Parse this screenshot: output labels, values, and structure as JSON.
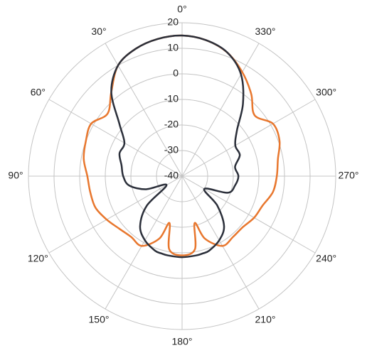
{
  "chart_data": {
    "type": "polar",
    "theta_zero": "top",
    "theta_direction": "counterclockwise",
    "grid": true,
    "rlim": [
      -40,
      20
    ],
    "rticks": [
      -40,
      -30,
      -20,
      -10,
      0,
      10,
      20
    ],
    "thetaticks": [
      {
        "value": 0,
        "label": "0°"
      },
      {
        "value": 30,
        "label": "30°"
      },
      {
        "value": 60,
        "label": "60°"
      },
      {
        "value": 90,
        "label": "90°"
      },
      {
        "value": 120,
        "label": "120°"
      },
      {
        "value": 150,
        "label": "150°"
      },
      {
        "value": 180,
        "label": "180°"
      },
      {
        "value": 210,
        "label": "210°"
      },
      {
        "value": 240,
        "label": "240°"
      },
      {
        "value": 270,
        "label": "270°"
      },
      {
        "value": 300,
        "label": "300°"
      },
      {
        "value": 330,
        "label": "330°"
      }
    ],
    "x": [
      0,
      10,
      20,
      30,
      40,
      50,
      60,
      70,
      80,
      90,
      100,
      110,
      120,
      130,
      140,
      150,
      160,
      165,
      170,
      180,
      190,
      195,
      200,
      210,
      220,
      230,
      240,
      250,
      260,
      270,
      280,
      290,
      300,
      310,
      320,
      330,
      340,
      350
    ],
    "series": [
      {
        "color": "#e8772e",
        "values": [
          15,
          14.5,
          13,
          10,
          3,
          -2,
          1,
          0,
          -1,
          -3,
          -3.6,
          -4,
          -6,
          -8,
          -9,
          -8.5,
          -14,
          -21,
          -11,
          -9,
          -11,
          -21,
          -14,
          -8.5,
          -9,
          -9,
          -7.5,
          -6.5,
          -4,
          -3,
          -2,
          0.5,
          1,
          -3,
          2,
          7,
          11.5,
          14
        ]
      },
      {
        "color": "#2b2f3a",
        "values": [
          15,
          14.5,
          13,
          10,
          3,
          -8,
          -14,
          -14,
          -16,
          -17,
          -19,
          -25,
          -33,
          -22,
          -14.5,
          -11,
          -9,
          -8.7,
          -8.5,
          -8.3,
          -8.5,
          -8.7,
          -9,
          -11,
          -14.5,
          -22,
          -30,
          -21,
          -19,
          -18,
          -19,
          -16,
          -16,
          -12,
          -3,
          6,
          11.5,
          14
        ]
      }
    ]
  }
}
